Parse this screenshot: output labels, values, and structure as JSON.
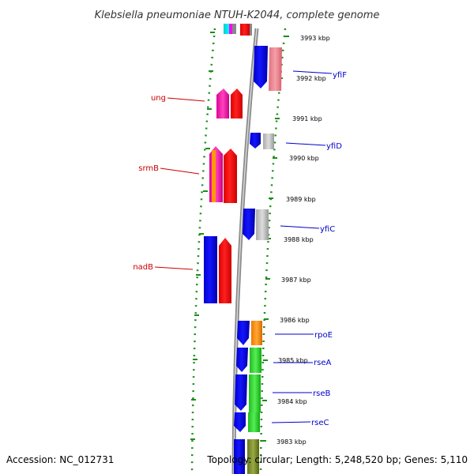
{
  "title": "Klebsiella pneumoniae NTUH-K2044, complete genome",
  "footer": {
    "accession": "Accession: NC_012731",
    "topology": "Topology: circular; Length: 5,248,520 bp; Genes: 5,110"
  },
  "ticks": [
    "3993 kbp",
    "3992 kbp",
    "3991 kbp",
    "3990 kbp",
    "3989 kbp",
    "3988 kbp",
    "3987 kbp",
    "3986 kbp",
    "3985 kbp",
    "3984 kbp",
    "3983 kbp"
  ],
  "genes_left": [
    {
      "name": "ung",
      "color": "#cc0000"
    },
    {
      "name": "srmB",
      "color": "#cc0000"
    },
    {
      "name": "nadB",
      "color": "#cc0000"
    }
  ],
  "genes_right": [
    {
      "name": "yfiF",
      "color": "#0000cc"
    },
    {
      "name": "yfiD",
      "color": "#0000cc"
    },
    {
      "name": "yfiC",
      "color": "#0000cc"
    },
    {
      "name": "rpoE",
      "color": "#0000cc"
    },
    {
      "name": "rseA",
      "color": "#0000cc"
    },
    {
      "name": "rseB",
      "color": "#0000cc"
    },
    {
      "name": "rseC",
      "color": "#0000cc"
    }
  ],
  "colors": {
    "backbone": "#8a8a8a",
    "tick_dots": "#1a8f1a",
    "forward_strand": "#0000ee",
    "reverse_strand": "#ee0000",
    "cog_pink": "#ee77aa",
    "cog_magenta": "#ee00aa",
    "cog_orange": "#ff8800",
    "cog_green": "#33cc33",
    "cog_grey": "#bbbbbb"
  }
}
